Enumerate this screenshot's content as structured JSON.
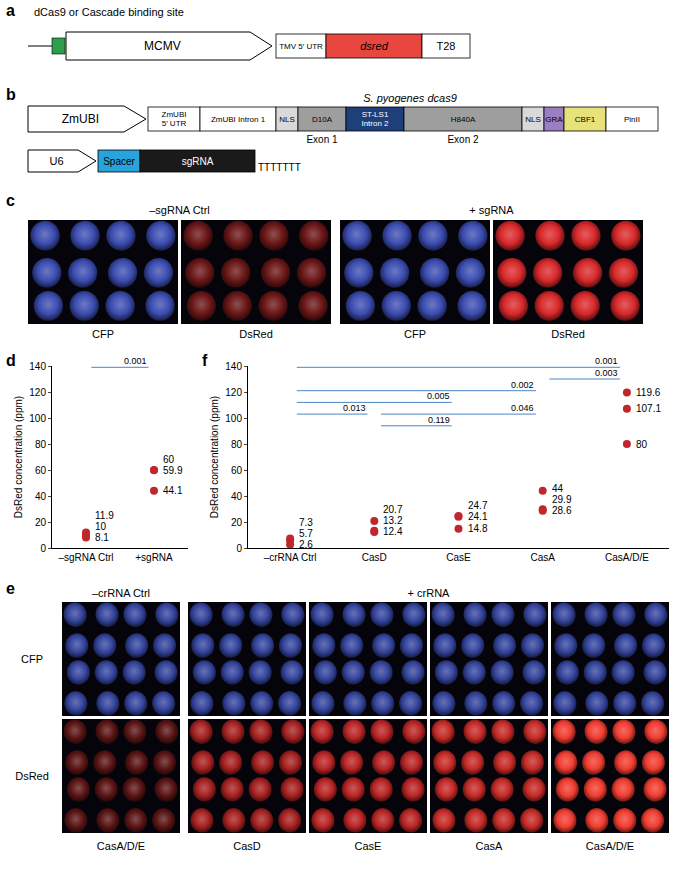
{
  "panels": {
    "a": {
      "panel": "a",
      "binding_site": "dCas9 or Cascade binding site",
      "binding_color": "#2e9e4a",
      "promoter": "MCMV",
      "elements": [
        {
          "text": "TMV 5′ UTR",
          "color": "#ffffff"
        },
        {
          "text": "dsred",
          "color": "#e8473f"
        },
        {
          "text": "T28",
          "color": "#ffffff"
        }
      ]
    },
    "b": {
      "panel": "b",
      "promoter": "ZmUBI",
      "gene": "S. pyogenes dcas9",
      "elements": [
        {
          "text": "ZmUBI 5′ UTR",
          "color": "#ffffff"
        },
        {
          "text": "ZmUBI Intron 1",
          "color": "#ffffff"
        },
        {
          "text": "NLS",
          "color": "#d9d9d9"
        },
        {
          "text": "D10A",
          "color": "#9e9e9e"
        },
        {
          "text": "ST-LS1 Intron 2",
          "color": "#1f3f7a"
        },
        {
          "text": "H840A",
          "color": "#9e9e9e"
        },
        {
          "text": "NLS",
          "color": "#d9d9d9"
        },
        {
          "text": "GRA",
          "color": "#9a7fc2"
        },
        {
          "text": "CBF1",
          "color": "#e8e27a"
        },
        {
          "text": "PinII",
          "color": "#ffffff"
        }
      ],
      "exons": [
        {
          "text": "Exon 1",
          "under": "D10A"
        },
        {
          "text": "Exon 2",
          "under": "H840A"
        }
      ],
      "sgrna": {
        "promoter": "U6",
        "elements": [
          {
            "text": "Spacer",
            "color": "#29a3dc"
          },
          {
            "text": "sgRNA",
            "color": "#1a1a1a"
          }
        ],
        "terminator": "TTTTTTT"
      }
    },
    "c": {
      "panel": "c",
      "groups": [
        {
          "text": "–sgRNA Ctrl",
          "images": [
            {
              "caption": "CFP",
              "color": "#3b4cb0"
            },
            {
              "caption": "DsRed",
              "color": "#6a1616"
            }
          ]
        },
        {
          "text": "+ sgRNA",
          "images": [
            {
              "caption": "CFP",
              "color": "#3b4cb0"
            },
            {
              "caption": "DsRed",
              "color": "#d8282a"
            }
          ]
        }
      ]
    },
    "e": {
      "panel": "e",
      "rows": [
        "CFP",
        "DsRed"
      ],
      "groups": [
        {
          "text": "–crRNA Ctrl",
          "columns": [
            {
              "caption": "CasA/D/E",
              "colors": [
                "#34449c",
                "#5a1414"
              ]
            }
          ]
        },
        {
          "text": "+ crRNA",
          "columns": [
            {
              "caption": "CasD",
              "colors": [
                "#34449c",
                "#a52020"
              ]
            },
            {
              "caption": "CasE",
              "colors": [
                "#34449c",
                "#b82424"
              ]
            },
            {
              "caption": "CasA",
              "colors": [
                "#34449c",
                "#c42a26"
              ]
            },
            {
              "caption": "CasA/D/E",
              "colors": [
                "#34449c",
                "#f03c30"
              ]
            }
          ]
        }
      ]
    }
  },
  "chart_data": [
    {
      "panel": "d",
      "type": "scatter",
      "marker": "circle",
      "color": "#c0272d",
      "y_label": "DsRed concentration (ppm)",
      "categories": [
        "–sgRNA Ctrl",
        "+sgRNA"
      ],
      "values": [
        [
          11.9,
          10,
          8.1
        ],
        [
          60,
          59.9,
          44.1
        ]
      ],
      "ylim": [
        0,
        140
      ],
      "yticks": [
        0,
        20,
        40,
        60,
        80,
        100,
        120,
        140
      ],
      "grid": false,
      "data_labels": true,
      "comparisons": [
        {
          "from": "–sgRNA Ctrl",
          "to": "+sgRNA",
          "p": 0.001,
          "y": 139
        }
      ]
    },
    {
      "panel": "f",
      "type": "scatter",
      "marker": "circle",
      "color": "#c0272d",
      "y_label": "DsRed concentration (ppm)",
      "categories": [
        "–crRNA Ctrl",
        "CasD",
        "CasE",
        "CasA",
        "CasA/D/E"
      ],
      "values": [
        [
          7.3,
          5.7,
          2.6
        ],
        [
          20.7,
          13.2,
          12.4
        ],
        [
          24.7,
          24.1,
          14.8
        ],
        [
          44,
          29.9,
          28.6
        ],
        [
          119.6,
          107.1,
          80
        ]
      ],
      "ylim": [
        0,
        140
      ],
      "yticks": [
        0,
        20,
        40,
        60,
        80,
        100,
        120,
        140
      ],
      "grid": false,
      "data_labels": true,
      "comparisons": [
        {
          "from": "–crRNA Ctrl",
          "to": "CasA/D/E",
          "p": 0.001,
          "y": 139
        },
        {
          "from": "CasA",
          "to": "CasA/D/E",
          "p": 0.003,
          "y": 130
        },
        {
          "from": "–crRNA Ctrl",
          "to": "CasA",
          "p": 0.002,
          "y": 121
        },
        {
          "from": "–crRNA Ctrl",
          "to": "CasE",
          "p": 0.005,
          "y": 112
        },
        {
          "from": "CasD",
          "to": "CasA",
          "p": 0.046,
          "y": 103
        },
        {
          "from": "–crRNA Ctrl",
          "to": "CasD",
          "p": 0.013,
          "y": 103
        },
        {
          "from": "CasD",
          "to": "CasE",
          "p": 0.119,
          "y": 94
        }
      ]
    }
  ]
}
